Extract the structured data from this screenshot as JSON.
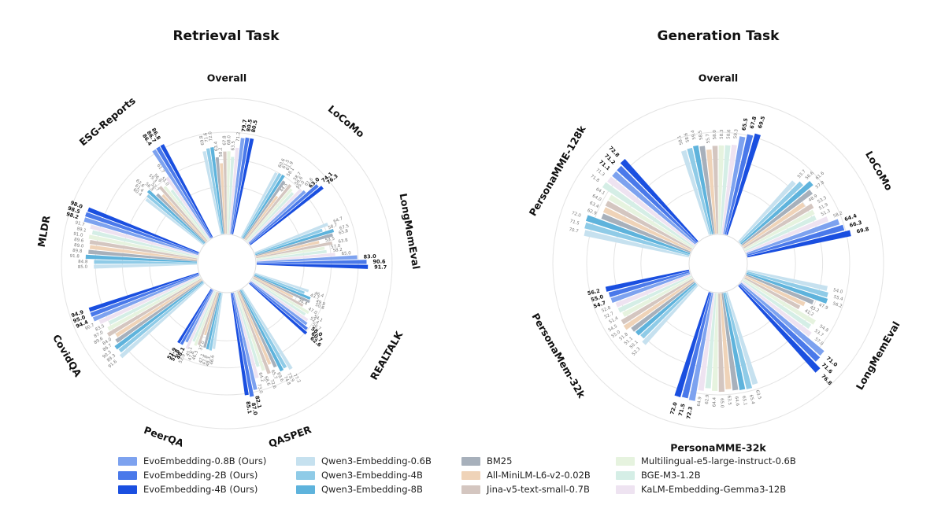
{
  "colors": {
    "EvoEmbedding-0.8B (Ours)": "#7da2ef",
    "EvoEmbedding-2B (Ours)": "#4a79ea",
    "EvoEmbedding-4B (Ours)": "#1a4fe0",
    "Qwen3-Embedding-0.6B": "#c6e1ef",
    "Qwen3-Embedding-4B": "#8fcbe7",
    "Qwen3-Embedding-8B": "#5eb3dc",
    "BM25": "#a7b0bb",
    "All-MiniLM-L6-v2-0.02B": "#efd3b8",
    "Jina-v5-text-small-0.7B": "#d4c6c0",
    "Multilingual-e5-large-instruct-0.6B": "#e6f3df",
    "BGE-M3-1.2B": "#d5eee6",
    "KaLM-Embedding-Gemma3-12B": "#eee3f1"
  },
  "legend": [
    "EvoEmbedding-0.8B (Ours)",
    "EvoEmbedding-2B (Ours)",
    "EvoEmbedding-4B (Ours)",
    "Qwen3-Embedding-0.6B",
    "Qwen3-Embedding-4B",
    "Qwen3-Embedding-8B",
    "BM25",
    "All-MiniLM-L6-v2-0.02B",
    "Jina-v5-text-small-0.7B",
    "Multilingual-e5-large-instruct-0.6B",
    "BGE-M3-1.2B",
    "KaLM-Embedding-Gemma3-12B"
  ],
  "chart_data": [
    {
      "type": "radial-bar",
      "title": "Retrieval Task",
      "categories": [
        "Overall",
        "LoCoMo",
        "LongMemEval",
        "REALTALK",
        "QASPER",
        "PeerQA",
        "CovidQA",
        "MLDR",
        "ESG-Reports"
      ],
      "series_order": [
        "Qwen3-Embedding-0.6B",
        "Qwen3-Embedding-4B",
        "Qwen3-Embedding-8B",
        "BM25",
        "All-MiniLM-L6-v2-0.02B",
        "Jina-v5-text-small-0.7B",
        "Multilingual-e5-large-instruct-0.6B",
        "BGE-M3-1.2B",
        "KaLM-Embedding-Gemma3-12B",
        "EvoEmbedding-0.8B (Ours)",
        "EvoEmbedding-2B (Ours)",
        "EvoEmbedding-4B (Ours)"
      ],
      "values": {
        "Overall": [
          69.8,
          71.6,
          72.0,
          63.4,
          58.2,
          67.8,
          68.0,
          63.5,
          71.2,
          79.7,
          80.5,
          80.5
        ],
        "LoCoMo": [
          60.6,
          61.5,
          61.9,
          58.1,
          44.5,
          58.7,
          56.6,
          55.0,
          61.6,
          63.0,
          74.1,
          76.3
        ],
        "LongMemEval": [
          64.7,
          58.7,
          67.5,
          65.8,
          53.5,
          63.8,
          57.0,
          58.2,
          65.0,
          83.0,
          90.6,
          91.7
        ],
        "REALTALK": [
          46.4,
          43.7,
          49.9,
          50.6,
          36.4,
          47.0,
          54.1,
          52.4,
          56.7,
          58.0,
          60.7,
          62.6
        ],
        "QASPER": [
          77.2,
          73.9,
          74.8,
          69.6,
          65.7,
          72.6,
          68.6,
          64.2,
          73.0,
          82.1,
          87.0,
          85.1
        ],
        "PeerQA": [
          46.6,
          48.3,
          47.8,
          47.1,
          37.0,
          46.3,
          47.8,
          45.1,
          52.9,
          48.1,
          51.8,
          51.9
        ],
        "CovidQA": [
          91.6,
          89.3,
          90.3,
          86.7,
          84.0,
          89.6,
          87.0,
          83.5,
          90.7,
          94.4,
          95.0,
          94.9
        ],
        "MLDR": [
          85.0,
          84.8,
          91.8,
          89.8,
          89.0,
          89.6,
          91.0,
          89.1,
          91.7,
          98.2,
          98.5,
          98.0
        ],
        "ESG-Reports": [
          60.4,
          61.4,
          63.6,
          56.3,
          52.7,
          59.3,
          56.9,
          51.0,
          61.7,
          86.4,
          86.7,
          86.8
        ]
      },
      "label_texts": {
        "Overall": [
          "69.8",
          "71.6",
          "72.0",
          "63.4",
          "58.2",
          "67.8",
          "68.0",
          "63.5",
          "71.2",
          "79.7",
          "80.5",
          "80.5"
        ],
        "LoCoMo": [
          "60.6",
          "61.5",
          "61.9",
          "58.1",
          "44.5",
          "58.7",
          "56.6",
          "55.0",
          "61.6",
          "63.0",
          "74.1",
          "76.3"
        ],
        "LongMemEval": [
          "64.7",
          "58.7",
          "67.5",
          "65.8",
          "53.5",
          "63.8",
          "57.0",
          "58.2",
          "65.0",
          "83.0",
          "90.6",
          "91.7"
        ],
        "REALTALK": [
          "46.4",
          "43.7",
          "49.9",
          "50.6",
          "36.4",
          "47.0",
          "54.1",
          "52.4",
          "56.7",
          "58.0",
          "60.7",
          "62.6"
        ],
        "QASPER": [
          "77.2",
          "73.9",
          "74.8",
          "69.6",
          "65.7",
          "72.6",
          "68.6",
          "64.2",
          "73.0",
          "82.1",
          "87.0",
          "85.1"
        ],
        "PeerQA": [
          "46.6",
          "48.3",
          "47.8",
          "47.1",
          "37.0",
          "46.3",
          "47.8",
          "45.1",
          "52.9",
          "48.1",
          "51.8",
          "51.9"
        ],
        "CovidQA": [
          "91.6",
          "89.3",
          "90.3",
          "86.7",
          "84.0",
          "89.6",
          "87.0",
          "83.5",
          "90.7",
          "94.4",
          "95.0",
          "94.9"
        ],
        "MLDR": [
          "85.0",
          "84.8",
          "91.8",
          "89.8",
          "89.0",
          "89.6",
          "91.0",
          "89.1",
          "91.7",
          "98.2",
          "98.5",
          "98.0"
        ],
        "ESG-Reports": [
          "60.4",
          "61.4",
          "63.6",
          "56.3",
          "52.7",
          "59.3",
          "56.9",
          "51.0",
          "61.7",
          "86.4",
          "86.7",
          "86.8"
        ]
      },
      "scale_max": 100
    },
    {
      "type": "radial-bar",
      "title": "Generation Task",
      "categories": [
        "Overall",
        "LoCoMo",
        "LongMemEval",
        "PersonaMME-32k",
        "PersonaMem-32k",
        "PersonaMME-128k"
      ],
      "series_order": [
        "Qwen3-Embedding-0.6B",
        "Qwen3-Embedding-4B",
        "Qwen3-Embedding-8B",
        "BM25",
        "All-MiniLM-L6-v2-0.02B",
        "Jina-v5-text-small-0.7B",
        "Multilingual-e5-large-instruct-0.6B",
        "BGE-M3-1.2B",
        "KaLM-Embedding-Gemma3-12B",
        "EvoEmbedding-0.8B (Ours)",
        "EvoEmbedding-2B (Ours)",
        "EvoEmbedding-4B (Ours)"
      ],
      "values": {
        "Overall": [
          58.1,
          58.6,
          59.4,
          58.5,
          55.7,
          58.0,
          58.3,
          58.6,
          59.3,
          65.5,
          67.8,
          69.5
        ],
        "LoCoMo": [
          53.7,
          56.6,
          61.6,
          57.8,
          48.9,
          53.3,
          51.9,
          51.3,
          58.2,
          64.4,
          66.3,
          69.8
        ],
        "LongMemEval": [
          54.0,
          55.4,
          56.2,
          47.9,
          43.2,
          41.2,
          54.8,
          53.7,
          57.0,
          71.0,
          71.6,
          76.8
        ],
        "PersonaMME-32k": [
          63.5,
          65.4,
          65.1,
          64.6,
          63.5,
          65.0,
          64.4,
          62.9,
          64.9,
          72.3,
          71.5,
          72.0
        ],
        "PersonaMem-32k": [
          52.3,
          50.1,
          51.1,
          51.8,
          55.0,
          54.5,
          51.4,
          52.7,
          52.8,
          54.7,
          55.0,
          56.2
        ],
        "PersonaMME-128k": [
          70.7,
          71.5,
          72.0,
          62.9,
          63.4,
          64.0,
          64.1,
          71.8,
          71.3,
          71.1,
          71.2,
          72.8
        ]
      },
      "label_texts": {
        "Overall": [
          "58.1",
          "58.6",
          "59.4",
          "58.5",
          "55.7",
          "58.0",
          "58.3",
          "58.6",
          "59.3",
          "65.5",
          "67.8",
          "69.5"
        ],
        "LoCoMo": [
          "53.7",
          "56.6",
          "61.6",
          "57.8",
          "48.9",
          "53.3",
          "51.9",
          "51.3",
          "58.2",
          "64.4",
          "66.3",
          "69.8"
        ],
        "LongMemEval": [
          "54.0",
          "55.4",
          "56.2",
          "47.9",
          "43.2",
          "41.2",
          "54.8",
          "53.7",
          "57.0",
          "71.0",
          "71.6",
          "76.8"
        ],
        "PersonaMME-32k": [
          "63.5",
          "65.4",
          "65.1",
          "64.6",
          "63.5",
          "65.0",
          "64.4",
          "62.9",
          "64.9",
          "72.3",
          "71.5",
          "72.0"
        ],
        "PersonaMem-32k": [
          "52.3",
          "50.1",
          "51.1",
          "51.8",
          "55.0",
          "54.5",
          "51.4",
          "52.7",
          "52.8",
          "54.7",
          "55.0",
          "56.2"
        ],
        "PersonaMME-128k": [
          "70.7",
          "71.5",
          "72.0",
          "62.9",
          "63.4",
          "64.0",
          "64.1",
          "71.8",
          "71.3",
          "71.1",
          "71.2",
          "72.8"
        ]
      },
      "scale_max": 80
    }
  ]
}
